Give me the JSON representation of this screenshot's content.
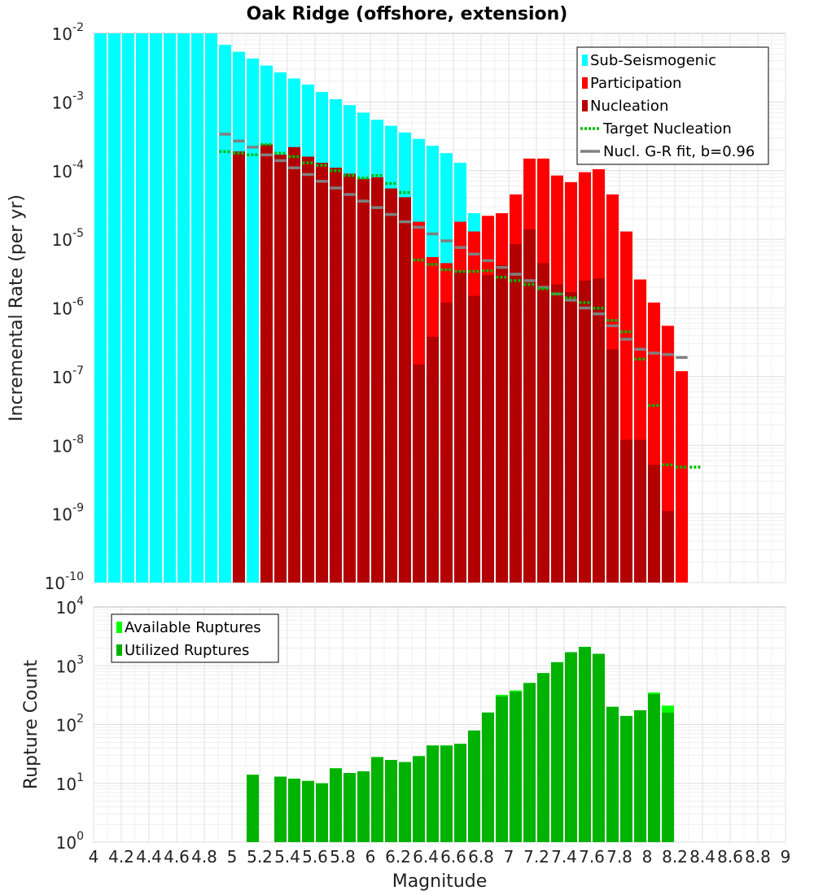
{
  "chart_data": [
    {
      "type": "bar",
      "title": "Oak Ridge (offshore, extension)",
      "xlabel": "",
      "ylabel": "Incremental Rate (per yr)",
      "yscale": "log",
      "ylim": [
        1e-10,
        0.01
      ],
      "xlim": [
        4,
        9
      ],
      "bin_width": 0.1,
      "x_ticks": [
        "4",
        "4.2",
        "4.4",
        "4.6",
        "4.8",
        "5",
        "5.2",
        "5.4",
        "5.6",
        "5.8",
        "6",
        "6.2",
        "6.4",
        "6.6",
        "6.8",
        "7",
        "7.2",
        "7.4",
        "7.6",
        "7.8",
        "8",
        "8.2",
        "8.4",
        "8.6",
        "8.8",
        "9"
      ],
      "y_ticks": [
        {
          "base": "10",
          "exp": "-10"
        },
        {
          "base": "10",
          "exp": "-9"
        },
        {
          "base": "10",
          "exp": "-8"
        },
        {
          "base": "10",
          "exp": "-7"
        },
        {
          "base": "10",
          "exp": "-6"
        },
        {
          "base": "10",
          "exp": "-5"
        },
        {
          "base": "10",
          "exp": "-4"
        },
        {
          "base": "10",
          "exp": "-3"
        },
        {
          "base": "10",
          "exp": "-2"
        }
      ],
      "colors": {
        "sub_seismogenic": "#00ffff",
        "participation": "#ff0000",
        "nucleation": "#b30000",
        "target_nucleation": "#00bb00",
        "gr_fit": "#808080"
      },
      "legend": [
        {
          "label": "Sub-Seismogenic",
          "color": "#00ffff",
          "style": "box"
        },
        {
          "label": "Participation",
          "color": "#ff0000",
          "style": "box"
        },
        {
          "label": "Nucleation",
          "color": "#b30000",
          "style": "box"
        },
        {
          "label": "Target Nucleation",
          "color": "#00bb00",
          "style": "dotted"
        },
        {
          "label": "Nucl. G-R fit, b=0.96",
          "color": "#808080",
          "style": "line"
        }
      ],
      "series": [
        {
          "name": "Sub-Seismogenic",
          "x": [
            4.05,
            4.15,
            4.25,
            4.35,
            4.45,
            4.55,
            4.65,
            4.75,
            4.85,
            4.95,
            5.05,
            5.15,
            5.25,
            5.35,
            5.45,
            5.55,
            5.65,
            5.75,
            5.85,
            5.95,
            6.05,
            6.15,
            6.25,
            6.35,
            6.45,
            6.55,
            6.65,
            6.75
          ],
          "values": [
            0.01,
            0.01,
            0.01,
            0.01,
            0.01,
            0.01,
            0.01,
            0.01,
            0.01,
            0.0068,
            0.0054,
            0.0043,
            0.0034,
            0.0027,
            0.0022,
            0.0018,
            0.0014,
            0.0011,
            0.0009,
            0.0007,
            0.00055,
            0.00045,
            0.00036,
            0.00029,
            0.00023,
            0.00018,
            0.00013,
            2.4e-05
          ]
        },
        {
          "name": "Participation",
          "x": [
            5.05,
            5.25,
            5.35,
            5.45,
            5.55,
            5.65,
            5.75,
            5.85,
            5.95,
            6.05,
            6.15,
            6.25,
            6.35,
            6.45,
            6.55,
            6.65,
            6.75,
            6.85,
            6.95,
            7.05,
            7.15,
            7.25,
            7.35,
            7.45,
            7.55,
            7.65,
            7.75,
            7.85,
            7.95,
            8.05,
            8.15,
            8.25
          ],
          "values": [
            0.00019,
            0.00024,
            0.00017,
            0.00022,
            0.00016,
            0.00013,
            0.00011,
            9e-05,
            7.6e-05,
            8e-05,
            5.5e-05,
            4.1e-05,
            1.8e-05,
            5.5e-06,
            4.5e-06,
            1.8e-05,
            1.3e-05,
            2.2e-05,
            2.4e-05,
            4.5e-05,
            0.00015,
            0.00015,
            8.5e-05,
            6.8e-05,
            9.5e-05,
            0.000105,
            4.5e-05,
            1.3e-05,
            2.6e-06,
            1.2e-06,
            5.5e-07,
            1.2e-07
          ]
        },
        {
          "name": "Nucleation",
          "x": [
            5.05,
            5.25,
            5.35,
            5.45,
            5.55,
            5.65,
            5.75,
            5.85,
            5.95,
            6.05,
            6.15,
            6.25,
            6.35,
            6.45,
            6.55,
            6.65,
            6.75,
            6.85,
            6.95,
            7.05,
            7.15,
            7.25,
            7.35,
            7.45,
            7.55,
            7.65,
            7.75,
            7.85,
            7.95,
            8.05,
            8.15,
            8.25
          ],
          "values": [
            0.00019,
            0.00024,
            0.00017,
            0.00022,
            0.00016,
            0.00013,
            0.00011,
            9e-05,
            7.6e-05,
            8e-05,
            5.5e-05,
            4.1e-05,
            1.5e-07,
            3.8e-07,
            1.2e-06,
            3.4e-06,
            1.5e-06,
            3e-06,
            4.2e-06,
            8.5e-06,
            1.4e-05,
            4.5e-06,
            2.2e-06,
            1.7e-06,
            2.5e-06,
            2.7e-06,
            2.5e-07,
            1.2e-08,
            1.2e-08,
            5.2e-09,
            1.1e-09,
            1e-10
          ]
        },
        {
          "name": "Target Nucleation",
          "x": [
            4.95,
            5.05,
            5.15,
            5.25,
            5.35,
            5.45,
            5.55,
            5.65,
            5.75,
            5.85,
            5.95,
            6.05,
            6.15,
            6.25,
            6.35,
            6.45,
            6.55,
            6.65,
            6.75,
            6.85,
            6.95,
            7.05,
            7.15,
            7.25,
            7.35,
            7.45,
            7.55,
            7.65,
            7.75,
            7.85,
            7.95,
            8.05,
            8.15,
            8.25,
            8.35
          ],
          "values": [
            0.00019,
            0.00018,
            0.00017,
            0.00024,
            0.00018,
            0.00016,
            0.00013,
            0.00012,
            0.0001,
            8.5e-05,
            7.8e-05,
            8.5e-05,
            6.5e-05,
            4.8e-05,
            5e-06,
            4.3e-06,
            3.6e-06,
            3.4e-06,
            3.4e-06,
            3.5e-06,
            2.8e-06,
            2.5e-06,
            2.2e-06,
            1.9e-06,
            1.6e-06,
            1.4e-06,
            1.2e-06,
            9.9e-07,
            6.6e-07,
            4.5e-07,
            1.8e-07,
            3.8e-08,
            5.2e-09,
            4.8e-09,
            4.8e-09
          ]
        },
        {
          "name": "Nucl. G-R fit, b=0.96",
          "x": [
            4.95,
            5.05,
            5.15,
            5.25,
            5.35,
            5.45,
            5.55,
            5.65,
            5.75,
            5.85,
            5.95,
            6.05,
            6.15,
            6.25,
            6.35,
            6.45,
            6.55,
            6.65,
            6.75,
            6.85,
            6.95,
            7.05,
            7.15,
            7.25,
            7.35,
            7.45,
            7.55,
            7.65,
            7.75,
            7.85,
            7.95,
            8.05,
            8.15,
            8.25
          ],
          "values": [
            0.00034,
            0.00027,
            0.00022,
            0.00017,
            0.00014,
            0.00011,
            8.8e-05,
            7e-05,
            5.6e-05,
            4.5e-05,
            3.6e-05,
            2.9e-05,
            2.3e-05,
            1.8e-05,
            1.5e-05,
            1.2e-05,
            9.5e-06,
            7.6e-06,
            6.1e-06,
            4.9e-06,
            3.9e-06,
            3.1e-06,
            2.5e-06,
            2e-06,
            1.6e-06,
            1.3e-06,
            1e-06,
            8.2e-07,
            5.5e-07,
            3.5e-07,
            2.5e-07,
            2.2e-07,
            2.1e-07,
            1.9e-07
          ]
        }
      ]
    },
    {
      "type": "bar",
      "title": "",
      "xlabel": "Magnitude",
      "ylabel": "Rupture Count",
      "yscale": "log",
      "ylim": [
        1,
        10000
      ],
      "xlim": [
        4,
        9
      ],
      "bin_width": 0.1,
      "y_ticks": [
        {
          "base": "10",
          "exp": "0"
        },
        {
          "base": "10",
          "exp": "1"
        },
        {
          "base": "10",
          "exp": "2"
        },
        {
          "base": "10",
          "exp": "3"
        },
        {
          "base": "10",
          "exp": "4"
        }
      ],
      "colors": {
        "available": "#00ff00",
        "utilized": "#00b300"
      },
      "legend": [
        {
          "label": "Available Ruptures",
          "color": "#00ff00",
          "style": "box"
        },
        {
          "label": "Utilized Ruptures",
          "color": "#00b300",
          "style": "box"
        }
      ],
      "series": [
        {
          "name": "Available Ruptures",
          "x": [
            5.15,
            5.35,
            5.45,
            5.55,
            5.65,
            5.75,
            5.85,
            5.95,
            6.05,
            6.15,
            6.25,
            6.35,
            6.45,
            6.55,
            6.65,
            6.75,
            6.85,
            6.95,
            7.05,
            7.15,
            7.25,
            7.35,
            7.45,
            7.55,
            7.65,
            7.75,
            7.85,
            7.95,
            8.05,
            8.15
          ],
          "values": [
            14,
            13,
            12,
            11,
            10,
            18,
            15,
            16,
            28,
            25,
            23,
            29,
            44,
            44,
            47,
            79,
            160,
            320,
            380,
            510,
            750,
            1150,
            1700,
            2100,
            1600,
            200,
            140,
            175,
            350,
            210
          ]
        },
        {
          "name": "Utilized Ruptures",
          "x": [
            5.15,
            5.35,
            5.45,
            5.55,
            5.65,
            5.75,
            5.85,
            5.95,
            6.05,
            6.15,
            6.25,
            6.35,
            6.45,
            6.55,
            6.65,
            6.75,
            6.85,
            6.95,
            7.05,
            7.15,
            7.25,
            7.35,
            7.45,
            7.55,
            7.65,
            7.75,
            7.85,
            7.95,
            8.05,
            8.15
          ],
          "values": [
            14,
            13,
            12,
            11,
            10,
            18,
            15,
            16,
            28,
            25,
            23,
            29,
            44,
            44,
            47,
            79,
            160,
            300,
            360,
            510,
            750,
            1150,
            1700,
            2100,
            1600,
            200,
            140,
            175,
            330,
            160
          ]
        }
      ]
    }
  ]
}
